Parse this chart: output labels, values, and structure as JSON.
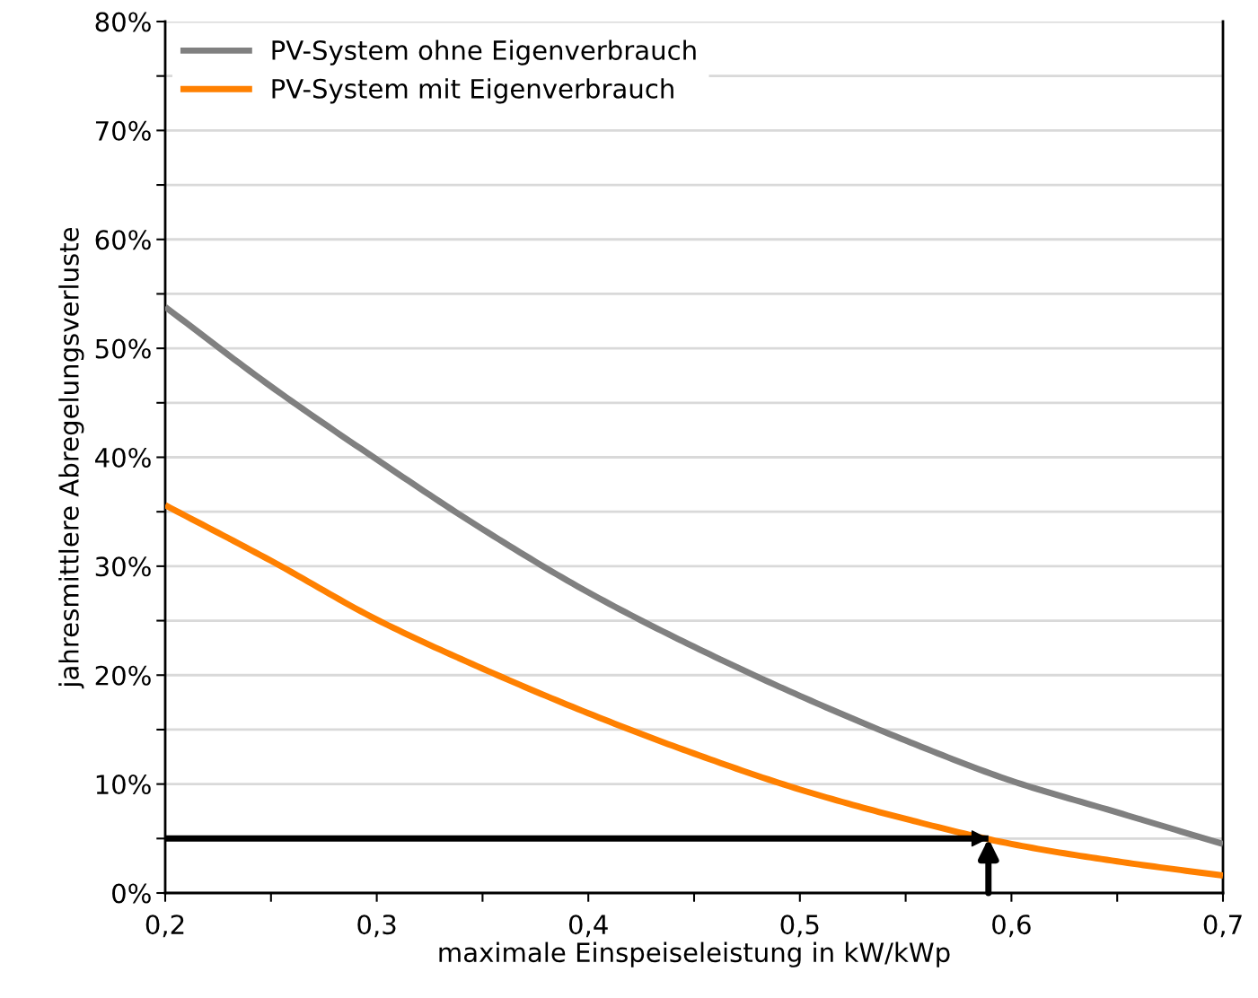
{
  "chart_data": {
    "type": "line",
    "xlabel": "maximale Einspeiseleistung in kW/kWp",
    "ylabel": "jahresmittlere Abregelungsverluste",
    "x": [
      0.2,
      0.25,
      0.3,
      0.35,
      0.4,
      0.45,
      0.5,
      0.55,
      0.6,
      0.65,
      0.7
    ],
    "series": [
      {
        "name": "PV-System ohne Eigenverbrauch",
        "color": "#808080",
        "values": [
          53.8,
          46.5,
          39.8,
          33.4,
          27.6,
          22.6,
          18.1,
          14.0,
          10.3,
          7.4,
          4.5
        ]
      },
      {
        "name": "PV-System mit Eigenverbrauch",
        "color": "#ff8000",
        "values": [
          35.6,
          30.5,
          25.1,
          20.6,
          16.5,
          12.8,
          9.5,
          6.8,
          4.5,
          2.9,
          1.6
        ]
      }
    ],
    "xlim": [
      0.2,
      0.7
    ],
    "xticks": [
      {
        "value": 0.2,
        "label": "0,2"
      },
      {
        "value": 0.25,
        "label": null
      },
      {
        "value": 0.3,
        "label": "0,3"
      },
      {
        "value": 0.35,
        "label": null
      },
      {
        "value": 0.4,
        "label": "0,4"
      },
      {
        "value": 0.45,
        "label": null
      },
      {
        "value": 0.5,
        "label": "0,5"
      },
      {
        "value": 0.55,
        "label": null
      },
      {
        "value": 0.6,
        "label": "0,6"
      },
      {
        "value": 0.65,
        "label": null
      },
      {
        "value": 0.7,
        "label": "0,7"
      }
    ],
    "ylim": [
      0,
      80
    ],
    "yticks": [
      {
        "value": 0,
        "label": "0%"
      },
      {
        "value": 5,
        "label": null
      },
      {
        "value": 10,
        "label": "10%"
      },
      {
        "value": 15,
        "label": null
      },
      {
        "value": 20,
        "label": "20%"
      },
      {
        "value": 25,
        "label": null
      },
      {
        "value": 30,
        "label": "30%"
      },
      {
        "value": 35,
        "label": null
      },
      {
        "value": 40,
        "label": "40%"
      },
      {
        "value": 45,
        "label": null
      },
      {
        "value": 50,
        "label": "50%"
      },
      {
        "value": 55,
        "label": null
      },
      {
        "value": 60,
        "label": "60%"
      },
      {
        "value": 65,
        "label": null
      },
      {
        "value": 70,
        "label": "70%"
      },
      {
        "value": 75,
        "label": null
      },
      {
        "value": 80,
        "label": "80%"
      }
    ],
    "grid": "y",
    "legend": "top left",
    "line_style": "solid",
    "marker": "none",
    "ref_lines": [
      {
        "axis": "y",
        "value": 5,
        "color": "#000000"
      }
    ]
  }
}
